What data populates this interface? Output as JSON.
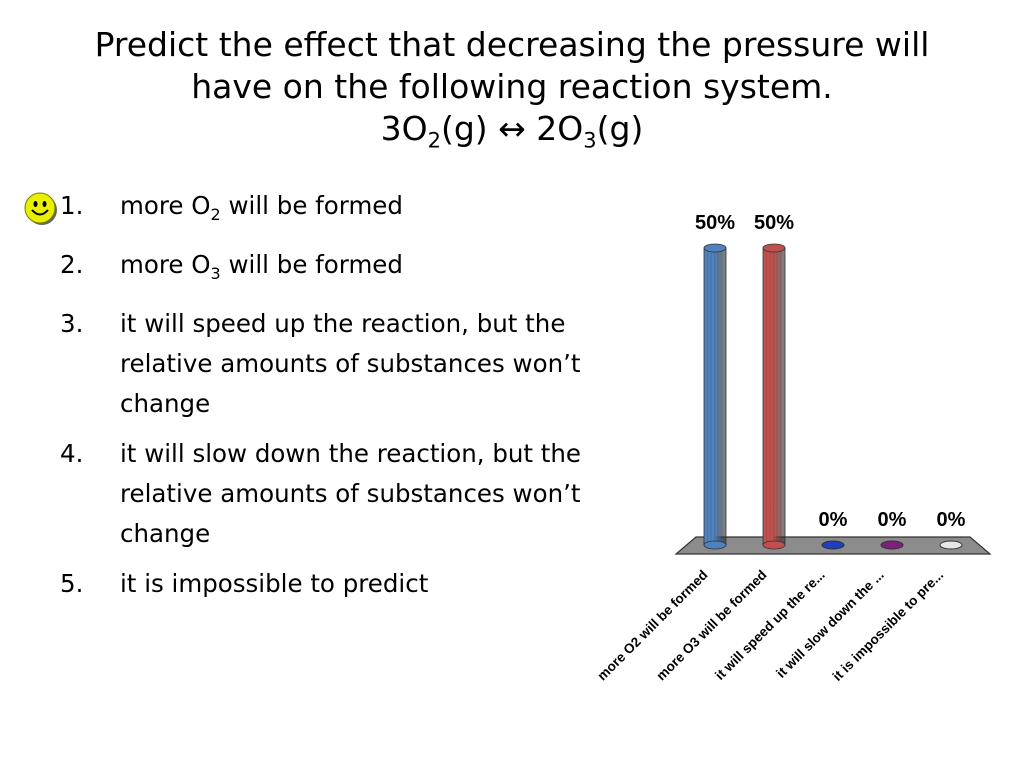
{
  "title": {
    "line1": "Predict the effect that decreasing the pressure will",
    "line2": "have on the following reaction system.",
    "eq_a": "3O",
    "eq_a_sub": "2",
    "eq_b": "(g) ↔ 2O",
    "eq_b_sub": "3",
    "eq_c": "(g)"
  },
  "options": [
    {
      "num": "1.",
      "pre": "more O",
      "sub": "2",
      "post": " will be formed"
    },
    {
      "num": "2.",
      "pre": "more O",
      "sub": "3",
      "post": " will be formed"
    },
    {
      "num": "3.",
      "text": "it will speed up the reaction, but the relative amounts of substances won’t change"
    },
    {
      "num": "4.",
      "text": "it will slow down the reaction, but the relative amounts of substances won’t change"
    },
    {
      "num": "5.",
      "text": "it is impossible to predict"
    }
  ],
  "correct_marker": "smiley-icon",
  "chart_data": {
    "type": "bar",
    "categories": [
      "more O2 will be formed",
      "more O3 will be formed",
      "it will speed up the re...",
      "it will slow down the ...",
      "it is impossible to pre..."
    ],
    "values": [
      50,
      50,
      0,
      0,
      0
    ],
    "value_labels": [
      "50%",
      "50%",
      "0%",
      "0%",
      "0%"
    ],
    "colors": [
      "#4F81BD",
      "#C0504D",
      "#1F3FBF",
      "#7F1F7F",
      "#E6E6E6"
    ],
    "ylim": [
      0,
      50
    ],
    "grid": false
  }
}
